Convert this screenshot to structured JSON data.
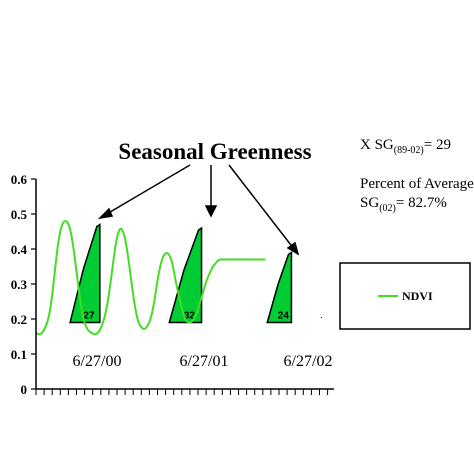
{
  "chart_data": {
    "type": "line",
    "title": "Seasonal Greenness",
    "xlabel": "",
    "ylabel": "",
    "ylim": [
      0,
      0.6
    ],
    "yticks": [
      "0",
      "0.1",
      "0.2",
      "0.3",
      "0.4",
      "0.5",
      "0.6"
    ],
    "x_date_labels": [
      "6/27/00",
      "6/27/01",
      "6/27/02"
    ],
    "grid": false,
    "legend_position": "right",
    "series": [
      {
        "name": "NDVI",
        "color": "#44dd22",
        "x": [
          0,
          0.5,
          1,
          1.5,
          2,
          2.5,
          3,
          3.5,
          4,
          4.5,
          5,
          5.5,
          6,
          6.5,
          7,
          7.5,
          8,
          8.5,
          9,
          9.5,
          10,
          10.5,
          11,
          11.5,
          12,
          12.5,
          13,
          13.5,
          14,
          14.5,
          15,
          15.5,
          16,
          16.5,
          17,
          17.5,
          18,
          18.5,
          19,
          19.5,
          20,
          20.5,
          21,
          21.5,
          22,
          22.5,
          23,
          23.5,
          24,
          24.5,
          25,
          25.5,
          26,
          26.5,
          27,
          27.5,
          28,
          28.5,
          29,
          29.5,
          30,
          30.5,
          31,
          31.5,
          32,
          32.5,
          33,
          33.5,
          34,
          34.5,
          35,
          35.5,
          36,
          36.5,
          37
        ],
        "y": [
          0.16,
          0.155,
          0.16,
          0.175,
          0.2,
          0.25,
          0.33,
          0.41,
          0.46,
          0.48,
          0.48,
          0.46,
          0.41,
          0.34,
          0.27,
          0.21,
          0.18,
          0.165,
          0.16,
          0.155,
          0.16,
          0.175,
          0.2,
          0.24,
          0.3,
          0.37,
          0.43,
          0.46,
          0.455,
          0.42,
          0.36,
          0.29,
          0.23,
          0.19,
          0.175,
          0.17,
          0.18,
          0.2,
          0.24,
          0.3,
          0.35,
          0.38,
          0.39,
          0.385,
          0.36,
          0.31,
          0.27,
          0.23,
          0.2,
          0.19,
          0.19,
          0.2,
          0.22,
          0.25,
          0.28,
          0.31,
          0.33,
          0.35,
          0.36,
          0.37,
          0.37,
          0.37,
          0.37,
          0.37,
          0.37,
          0.37,
          0.37,
          0.37,
          0.37,
          0.37,
          0.37,
          0.37,
          0.37,
          0.37,
          0.37
        ]
      }
    ],
    "seasonal_greenness_areas": [
      {
        "label": "27",
        "start_x": 5.5,
        "peak_x": 10.3,
        "base_y": 0.19,
        "peak_y": 0.47
      },
      {
        "label": "32",
        "start_x": 21.5,
        "peak_x": 26.7,
        "base_y": 0.19,
        "peak_y": 0.46
      },
      {
        "label": "24",
        "start_x": 37.3,
        "peak_x": 41.2,
        "base_y": 0.19,
        "peak_y": 0.39
      }
    ]
  },
  "annotations": {
    "title": "Seasonal Greenness",
    "mean_sg_prefix": "X SG",
    "mean_sg_sub": "(89-02)",
    "mean_sg_value": "= 29",
    "percent_line1": "Percent of Average",
    "percent_prefix": "SG",
    "percent_sub": "(02)",
    "percent_value": "= 82.7%"
  },
  "legend": {
    "label": "NDVI"
  },
  "colors": {
    "ndvi": "#44dd22",
    "fill": "#00cc33",
    "axis": "#000000"
  }
}
